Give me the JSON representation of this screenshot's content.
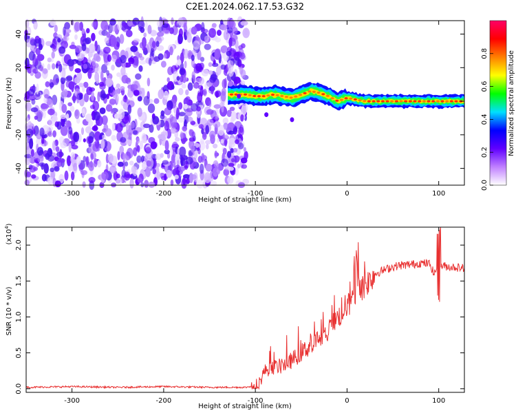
{
  "title": "C2E1.2024.062.17.53.G32",
  "chart_data": [
    {
      "type": "heatmap",
      "panel": "spectrogram",
      "xlabel": "Height of straight line (km)",
      "ylabel": "Frequency (Hz)",
      "xlim": [
        -350,
        128
      ],
      "ylim": [
        -50,
        48
      ],
      "xticks": [
        -300,
        -200,
        -100,
        0,
        100
      ],
      "xtick_labels": [
        "-300",
        "-200",
        "-100",
        "0",
        "100"
      ],
      "yticks": [
        -40,
        -20,
        0,
        20,
        40
      ],
      "ytick_labels": [
        "-40",
        "-20",
        "0",
        "20",
        "40"
      ],
      "noise_region_x": [
        -350,
        -110
      ],
      "signal_track": {
        "x": [
          -130,
          -120,
          -110,
          -100,
          -90,
          -80,
          -70,
          -60,
          -50,
          -40,
          -30,
          -20,
          -10,
          0,
          10,
          20,
          40,
          60,
          80,
          100,
          128
        ],
        "freq": [
          4,
          4,
          4,
          3,
          3,
          4,
          3,
          2,
          4,
          6,
          5,
          3,
          0,
          2,
          1,
          0,
          0,
          0,
          0,
          0,
          0
        ]
      },
      "colorbar": {
        "label": "Normalized spectral amplitude",
        "range": [
          0,
          1
        ],
        "ticks": [
          0.0,
          0.2,
          0.4,
          0.6,
          0.8
        ],
        "tick_labels": [
          "0.0",
          "0.2",
          "0.4",
          "0.6",
          "0.8"
        ],
        "colors": [
          "#ffffff",
          "#c080ff",
          "#6000ff",
          "#0000ff",
          "#00e0ff",
          "#00ff00",
          "#ffff00",
          "#ff8000",
          "#ff0000",
          "#ff0066"
        ]
      }
    },
    {
      "type": "line",
      "panel": "snr",
      "xlabel": "Height of straight line (km)",
      "ylabel": "SNR (10 * v/v)",
      "scale_label": "(x10",
      "scale_exp": "4",
      "scale_close": ")",
      "xlim": [
        -350,
        128
      ],
      "ylim": [
        -0.05,
        2.25
      ],
      "xticks": [
        -300,
        -200,
        -100,
        0,
        100
      ],
      "xtick_labels": [
        "-300",
        "-200",
        "-100",
        "0",
        "100"
      ],
      "yticks": [
        0.0,
        0.5,
        1.0,
        1.5,
        2.0
      ],
      "ytick_labels": [
        "0.0",
        "0.5",
        "1.0",
        "1.5",
        "2.0"
      ],
      "color": "#e83030",
      "series": [
        {
          "x": [
            -350,
            -300,
            -250,
            -200,
            -150,
            -110,
            -100,
            -95,
            -90,
            -80,
            -70,
            -60,
            -50,
            -40,
            -30,
            -20,
            -10,
            -5,
            0,
            10,
            20,
            30,
            40,
            50,
            60,
            70,
            80,
            90,
            95,
            100,
            110,
            128
          ],
          "values": [
            0.02,
            0.03,
            0.02,
            0.03,
            0.02,
            0.02,
            0.05,
            0.1,
            0.25,
            0.3,
            0.32,
            0.4,
            0.5,
            0.6,
            0.7,
            0.8,
            1.0,
            1.05,
            1.15,
            1.3,
            1.45,
            1.6,
            1.65,
            1.7,
            1.72,
            1.73,
            1.75,
            1.74,
            1.6,
            1.72,
            1.7,
            1.68
          ]
        }
      ]
    }
  ]
}
